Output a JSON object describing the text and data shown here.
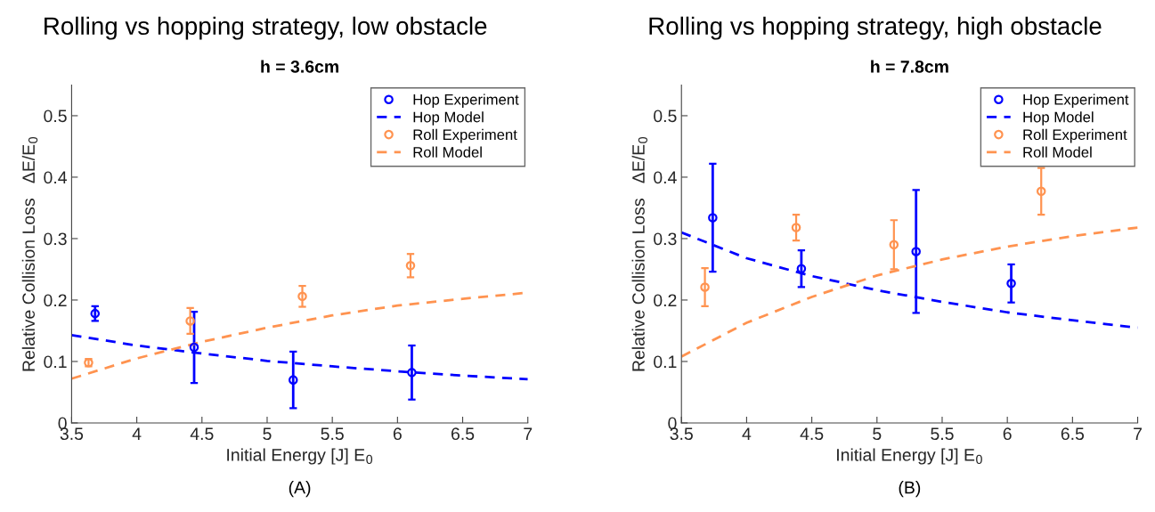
{
  "chart_data": [
    {
      "type": "scatter",
      "title": "Rolling vs hopping strategy, low obstacle",
      "subtitle": "h = 3.6cm",
      "xlabel": "Initial Energy [J] E$_{0}$",
      "ylabel": "Relative Collision Loss   ΔE/E$_{0}$",
      "annotations": [
        "(A)"
      ],
      "xlim": [
        3.5,
        7
      ],
      "xticks": [
        3.5,
        4,
        4.5,
        5,
        5.5,
        6,
        6.5,
        7
      ],
      "ylim": [
        0,
        0.55
      ],
      "yticks": [
        0,
        0.1,
        0.2,
        0.3,
        0.4,
        0.5
      ],
      "grid": false,
      "legend": "top right",
      "series": [
        {
          "name": "Hop Experiment",
          "color": "#0000ff",
          "marker": "circle",
          "x": [
            3.68,
            4.44,
            5.2,
            6.11
          ],
          "values": [
            0.178,
            0.123,
            0.07,
            0.082
          ],
          "errors": [
            0.012,
            0.058,
            0.046,
            0.044
          ]
        },
        {
          "name": "Hop Model",
          "type": "line",
          "color": "#0000ff",
          "line_style": "dashed",
          "x": [
            3.5,
            4,
            4.5,
            5,
            5.5,
            6,
            6.5,
            7
          ],
          "values": [
            0.143,
            0.126,
            0.113,
            0.101,
            0.092,
            0.084,
            0.077,
            0.071
          ]
        },
        {
          "name": "Roll Experiment",
          "color": "#ff9350",
          "marker": "circle",
          "x": [
            3.63,
            4.41,
            5.27,
            6.1
          ],
          "values": [
            0.098,
            0.166,
            0.206,
            0.256
          ],
          "errors": [
            0.006,
            0.021,
            0.017,
            0.019
          ]
        },
        {
          "name": "Roll Model",
          "type": "line",
          "color": "#ff9350",
          "line_style": "dashed",
          "x": [
            3.5,
            4,
            4.5,
            5,
            5.5,
            6,
            6.5,
            7
          ],
          "values": [
            0.072,
            0.105,
            0.132,
            0.155,
            0.175,
            0.191,
            0.202,
            0.212
          ]
        }
      ]
    },
    {
      "type": "scatter",
      "title": "Rolling vs hopping strategy, high obstacle",
      "subtitle": "h = 7.8cm",
      "xlabel": "Initial Energy [J] E$_{0}$",
      "ylabel": "Relative Collision Loss   ΔE/E$_{0}$",
      "annotations": [
        "(B)"
      ],
      "xlim": [
        3.5,
        7
      ],
      "xticks": [
        3.5,
        4,
        4.5,
        5,
        5.5,
        6,
        6.5,
        7
      ],
      "ylim": [
        0,
        0.55
      ],
      "yticks": [
        0,
        0.1,
        0.2,
        0.3,
        0.4,
        0.5
      ],
      "grid": false,
      "legend": "top right",
      "series": [
        {
          "name": "Hop Experiment",
          "color": "#0000ff",
          "marker": "circle",
          "x": [
            3.74,
            4.42,
            5.3,
            6.03
          ],
          "values": [
            0.334,
            0.251,
            0.279,
            0.227
          ],
          "errors": [
            0.088,
            0.03,
            0.1,
            0.031
          ]
        },
        {
          "name": "Hop Model",
          "type": "line",
          "color": "#0000ff",
          "line_style": "dashed",
          "x": [
            3.5,
            4,
            4.5,
            5,
            5.5,
            6,
            6.5,
            7
          ],
          "values": [
            0.31,
            0.268,
            0.239,
            0.216,
            0.197,
            0.18,
            0.167,
            0.155
          ]
        },
        {
          "name": "Roll Experiment",
          "color": "#ff9350",
          "marker": "circle",
          "x": [
            3.68,
            4.38,
            5.13,
            6.26
          ],
          "values": [
            0.221,
            0.318,
            0.29,
            0.377
          ],
          "errors": [
            0.031,
            0.021,
            0.04,
            0.038
          ]
        },
        {
          "name": "Roll Model",
          "type": "line",
          "color": "#ff9350",
          "line_style": "dashed",
          "x": [
            3.5,
            4,
            4.5,
            5,
            5.5,
            6,
            6.5,
            7
          ],
          "values": [
            0.108,
            0.163,
            0.205,
            0.24,
            0.266,
            0.287,
            0.304,
            0.318
          ]
        }
      ]
    }
  ]
}
